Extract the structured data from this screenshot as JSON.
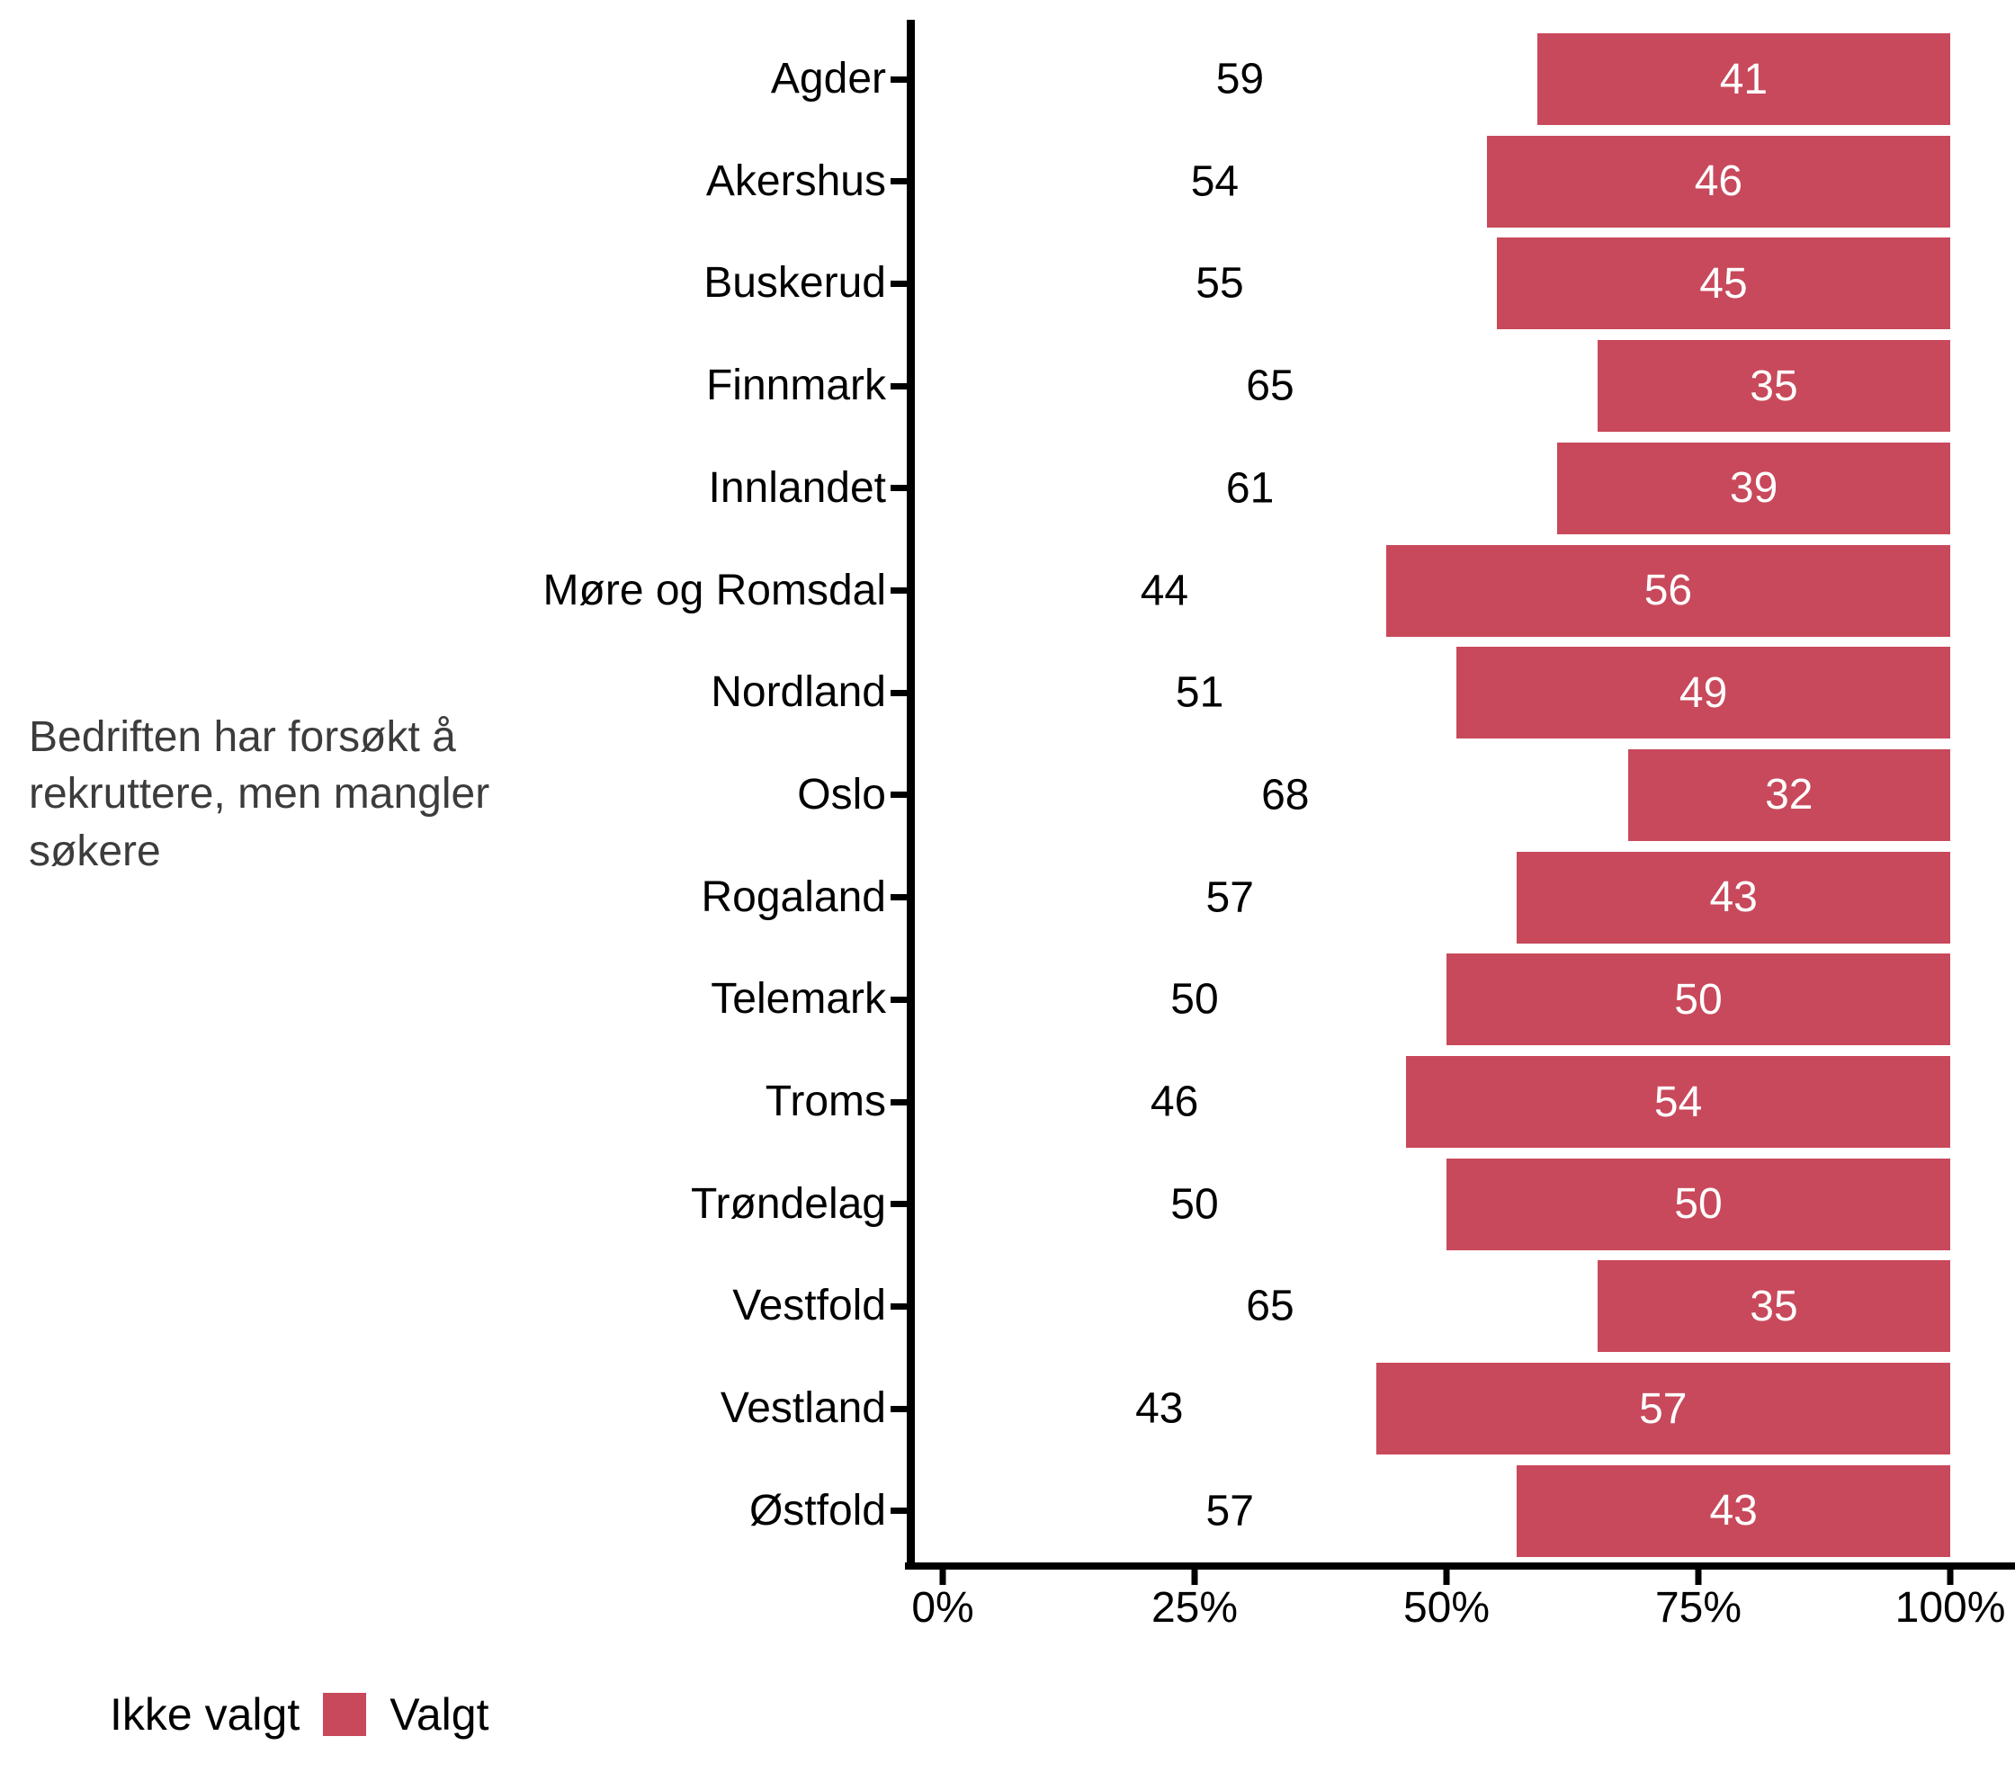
{
  "chart_data": {
    "type": "bar",
    "orientation": "horizontal",
    "stacked": true,
    "title": "",
    "row_group_label": "Bedriften har forsøkt å rekruttere, men mangler søkere",
    "categories": [
      "Agder",
      "Akershus",
      "Buskerud",
      "Finnmark",
      "Innlandet",
      "Møre og Romsdal",
      "Nordland",
      "Oslo",
      "Rogaland",
      "Telemark",
      "Troms",
      "Trøndelag",
      "Vestfold",
      "Vestland",
      "Østfold"
    ],
    "series": [
      {
        "name": "Ikke valgt",
        "color": "#FFFFFF",
        "label_color": "#000000",
        "values": [
          59,
          54,
          55,
          65,
          61,
          44,
          51,
          68,
          57,
          50,
          46,
          50,
          65,
          43,
          57
        ]
      },
      {
        "name": "Valgt",
        "color": "#C8495B",
        "label_color": "#FFFFFF",
        "values": [
          41,
          46,
          45,
          35,
          39,
          56,
          49,
          32,
          43,
          50,
          54,
          50,
          35,
          57,
          43
        ]
      }
    ],
    "x_axis": {
      "min": 0,
      "max": 100,
      "ticks": [
        {
          "label": "0%",
          "value": 0
        },
        {
          "label": "25%",
          "value": 25
        },
        {
          "label": "50%",
          "value": 50
        },
        {
          "label": "75%",
          "value": 75
        },
        {
          "label": "100%",
          "value": 100
        }
      ]
    },
    "legend": {
      "position": "bottom-left",
      "items": [
        "Ikke valgt",
        "Valgt"
      ]
    },
    "grid": false
  },
  "colors": {
    "bar": "#C8495B",
    "axis": "#000000",
    "axis_text": "#000000",
    "caption_text": "#3C3C3C",
    "bar_value_text": "#FFFFFF",
    "background": "#FFFFFF"
  }
}
